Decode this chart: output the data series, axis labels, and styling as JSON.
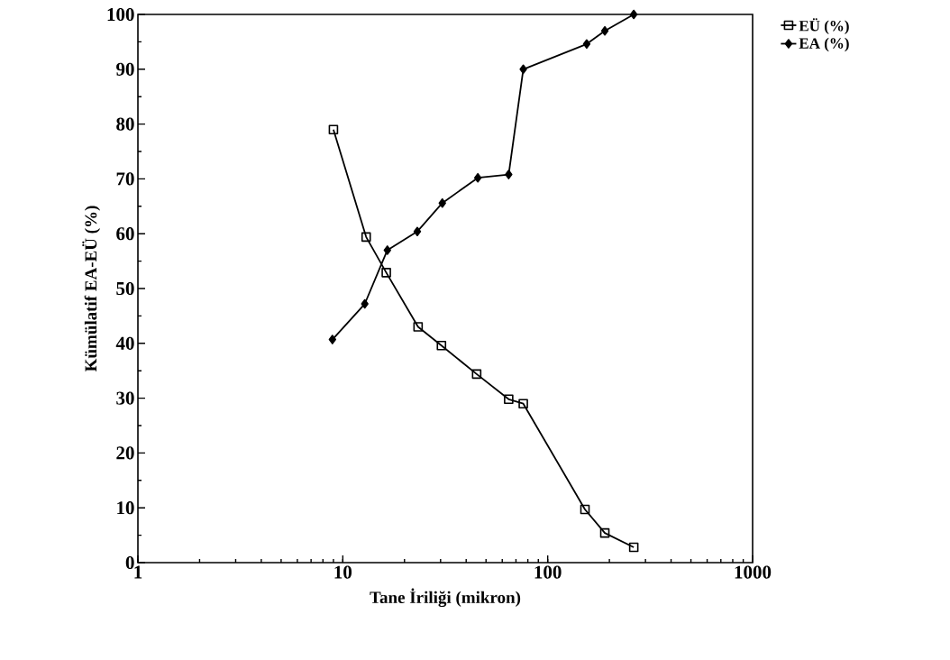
{
  "chart_data": {
    "type": "line",
    "xlabel": "Tane İriliği (mikron)",
    "ylabel": "Kümülatif EA-EÜ (%)",
    "log": "x",
    "xlim": [
      1,
      1000
    ],
    "xticks": [
      1,
      10,
      100,
      1000
    ],
    "ylim": [
      0,
      100
    ],
    "yticks": [
      0,
      10,
      20,
      30,
      40,
      50,
      60,
      70,
      80,
      90,
      100
    ],
    "grid": false,
    "legend": "top right",
    "line_style": "solid",
    "series": [
      {
        "name": "EÜ (%)",
        "color": "#000000",
        "marker": "square",
        "x": [
          9.0,
          13,
          16.3,
          23.3,
          30.3,
          45,
          64.5,
          76,
          152,
          190,
          263
        ],
        "values": [
          79,
          59.4,
          52.9,
          43,
          39.6,
          34.4,
          29.8,
          29,
          9.7,
          5.4,
          2.8
        ]
      },
      {
        "name": "EA (%)",
        "color": "#000000",
        "marker": "diamond",
        "x": [
          8.9,
          12.8,
          16.5,
          23.1,
          30.6,
          45.6,
          64.5,
          76,
          155,
          190,
          263
        ],
        "values": [
          40.7,
          47.2,
          57,
          60.4,
          65.6,
          70.2,
          70.8,
          90,
          94.6,
          97,
          100
        ]
      }
    ]
  }
}
